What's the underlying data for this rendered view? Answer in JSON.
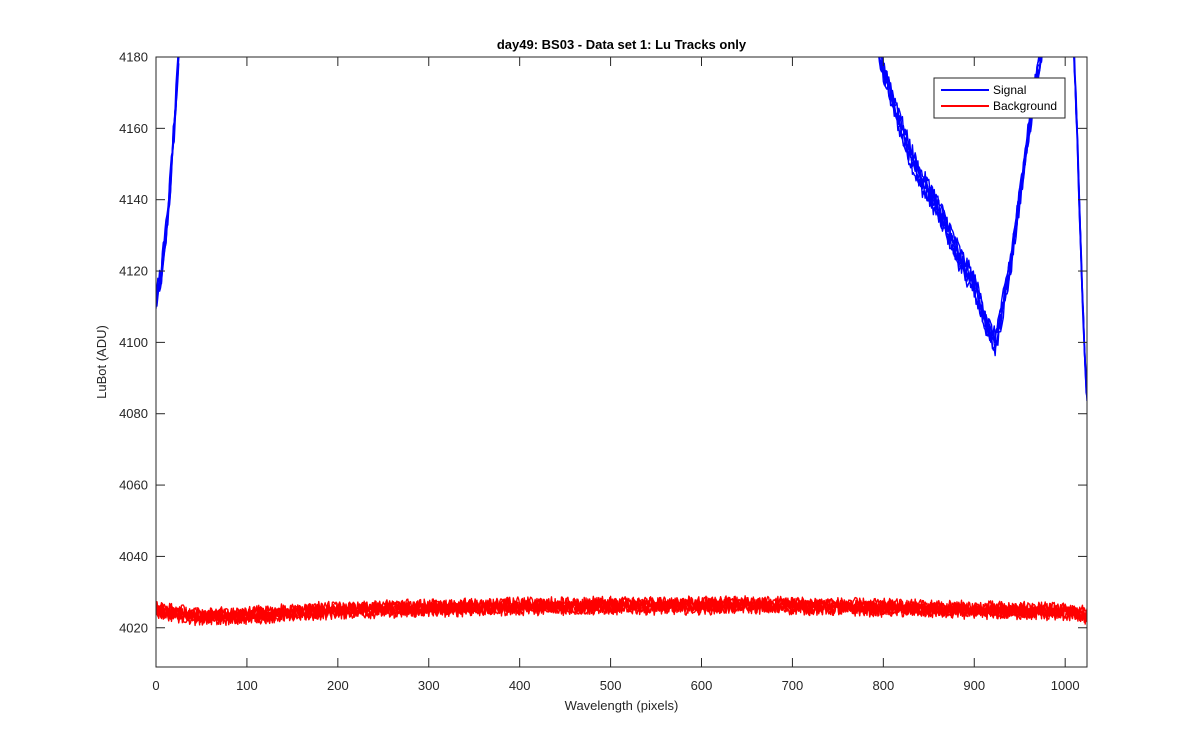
{
  "chart_data": {
    "type": "line",
    "title": "day49: BS03 - Data set 1: Lu Tracks only",
    "xlabel": "Wavelength (pixels)",
    "ylabel": "LuBot (ADU)",
    "xlim": [
      0,
      1024
    ],
    "ylim": [
      4009,
      4180
    ],
    "xticks": [
      0,
      100,
      200,
      300,
      400,
      500,
      600,
      700,
      800,
      900,
      1000
    ],
    "xtick_labels": [
      "0",
      "100",
      "200",
      "300",
      "400",
      "500",
      "600",
      "700",
      "800",
      "900",
      "1000"
    ],
    "yticks": [
      4020,
      4040,
      4060,
      4080,
      4100,
      4120,
      4140,
      4160,
      4180
    ],
    "ytick_labels": [
      "4020",
      "4040",
      "4060",
      "4080",
      "4100",
      "4120",
      "4140",
      "4160",
      "4180"
    ],
    "grid": false,
    "legend_position": "top-right",
    "series": [
      {
        "name": "Signal",
        "color": "#0000ff",
        "repeats": 6,
        "jitter": 2.0,
        "segments": [
          {
            "x": [
              0,
              5,
              10,
              15,
              20,
              23,
              25
            ],
            "y": [
              4112,
              4118,
              4128,
              4142,
              4160,
              4172,
              4181
            ]
          },
          {
            "x": [
              795,
              810,
              825,
              840,
              855,
              870,
              885,
              900,
              910,
              918,
              923,
              930,
              940,
              950,
              960,
              970,
              980,
              990,
              1000,
              1008
            ],
            "y": [
              4181,
              4168,
              4156,
              4146,
              4140,
              4132,
              4123,
              4116,
              4108,
              4102,
              4100,
              4108,
              4122,
              4140,
              4160,
              4176,
              4190,
              4199,
              4199,
              4192
            ]
          },
          {
            "x": [
              1008,
              1013,
              1018,
              1022,
              1024
            ],
            "y": [
              4192,
              4160,
              4120,
              4093,
              4085
            ]
          }
        ]
      },
      {
        "name": "Background",
        "color": "#ff0000",
        "repeats": 6,
        "jitter": 1.8,
        "segments": [
          {
            "x": [
              0,
              50,
              100,
              200,
              300,
              400,
              500,
              600,
              650,
              700,
              800,
              900,
              1000,
              1024
            ],
            "y": [
              4025,
              4023,
              4023.5,
              4025,
              4025.5,
              4026,
              4026.2,
              4026.2,
              4026.5,
              4026.2,
              4025.6,
              4025,
              4024.5,
              4023.5
            ]
          }
        ]
      }
    ]
  }
}
